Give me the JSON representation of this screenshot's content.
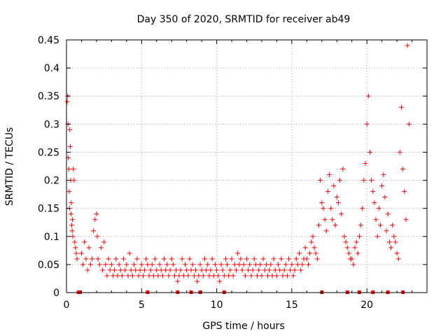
{
  "chart_data": {
    "type": "scatter",
    "title": "Day 350 of 2020, SRMTID for receiver ab49",
    "xlabel": "GPS time / hours",
    "ylabel": "SRMTID / TECUs",
    "xlim": [
      0,
      24
    ],
    "ylim": [
      0,
      0.45
    ],
    "xticks": [
      0,
      5,
      10,
      15,
      20
    ],
    "yticks": [
      0,
      0.05,
      0.1,
      0.15,
      0.2,
      0.25,
      0.3,
      0.35,
      0.4,
      0.45
    ],
    "xtick_labels": [
      "0",
      "5",
      "10",
      "15",
      "20"
    ],
    "ytick_labels": [
      "0",
      "0.05",
      "0.1",
      "0.15",
      "0.2",
      "0.25",
      "0.3",
      "0.35",
      "0.4",
      "0.45"
    ],
    "grid": true,
    "marker": "+",
    "color": "#ff0000",
    "series": [
      {
        "name": "SRMTID",
        "x": [
          0.05,
          0.08,
          0.1,
          0.12,
          0.15,
          0.18,
          0.2,
          0.22,
          0.25,
          0.28,
          0.3,
          0.32,
          0.35,
          0.38,
          0.4,
          0.42,
          0.45,
          0.5,
          0.55,
          0.6,
          0.65,
          0.7,
          1.0,
          1.1,
          1.2,
          1.3,
          1.4,
          1.5,
          1.6,
          1.7,
          1.8,
          1.9,
          2.0,
          2.05,
          2.1,
          2.2,
          2.3,
          2.4,
          2.5,
          2.6,
          2.7,
          2.8,
          2.9,
          3.0,
          3.1,
          3.2,
          3.3,
          3.4,
          3.5,
          3.6,
          3.7,
          3.8,
          3.9,
          4.0,
          4.1,
          4.2,
          4.3,
          4.4,
          4.5,
          4.6,
          4.7,
          4.8,
          4.9,
          5.0,
          5.1,
          5.2,
          5.3,
          5.4,
          5.5,
          5.6,
          5.7,
          5.8,
          5.9,
          6.0,
          6.1,
          6.2,
          6.3,
          6.4,
          6.5,
          6.6,
          6.7,
          6.8,
          6.9,
          7.0,
          7.1,
          7.2,
          7.3,
          7.4,
          7.5,
          7.6,
          7.7,
          7.8,
          7.9,
          8.0,
          8.1,
          8.2,
          8.3,
          8.4,
          8.5,
          8.6,
          8.7,
          8.8,
          8.9,
          9.0,
          9.1,
          9.2,
          9.3,
          9.4,
          9.5,
          9.6,
          9.7,
          9.8,
          9.9,
          10.0,
          10.1,
          10.2,
          10.3,
          10.4,
          10.5,
          10.6,
          10.7,
          10.8,
          10.9,
          11.0,
          11.1,
          11.2,
          11.3,
          11.4,
          11.5,
          11.6,
          11.7,
          11.8,
          11.9,
          12.0,
          12.1,
          12.2,
          12.3,
          12.4,
          12.5,
          12.6,
          12.7,
          12.8,
          12.9,
          13.0,
          13.1,
          13.2,
          13.3,
          13.4,
          13.5,
          13.6,
          13.7,
          13.8,
          13.9,
          14.0,
          14.1,
          14.2,
          14.3,
          14.4,
          14.5,
          14.6,
          14.7,
          14.8,
          14.9,
          15.0,
          15.1,
          15.2,
          15.3,
          15.4,
          15.5,
          15.6,
          15.7,
          15.8,
          15.9,
          16.0,
          16.1,
          16.2,
          16.3,
          16.4,
          16.5,
          16.6,
          16.7,
          16.8,
          16.9,
          17.0,
          17.1,
          17.2,
          17.3,
          17.4,
          17.5,
          17.6,
          17.7,
          17.8,
          17.9,
          18.0,
          18.1,
          18.2,
          18.3,
          18.4,
          18.5,
          18.6,
          18.7,
          18.8,
          18.9,
          19.0,
          19.1,
          19.2,
          19.3,
          19.4,
          19.5,
          19.6,
          19.7,
          19.8,
          19.9,
          20.0,
          20.1,
          20.2,
          20.3,
          20.4,
          20.5,
          20.6,
          20.7,
          20.8,
          20.9,
          21.0,
          21.1,
          21.2,
          21.3,
          21.4,
          21.5,
          21.6,
          21.7,
          21.8,
          21.9,
          22.0,
          22.1,
          22.2,
          22.3,
          22.4,
          22.5,
          22.6,
          22.7,
          22.8
        ],
        "y": [
          0.34,
          0.35,
          0.3,
          0.24,
          0.22,
          0.18,
          0.15,
          0.29,
          0.26,
          0.2,
          0.14,
          0.16,
          0.12,
          0.11,
          0.13,
          0.1,
          0.22,
          0.2,
          0.09,
          0.08,
          0.07,
          0.06,
          0.07,
          0.05,
          0.09,
          0.06,
          0.04,
          0.08,
          0.05,
          0.06,
          0.11,
          0.13,
          0.14,
          0.1,
          0.06,
          0.05,
          0.08,
          0.04,
          0.09,
          0.05,
          0.03,
          0.06,
          0.04,
          0.05,
          0.03,
          0.04,
          0.06,
          0.03,
          0.05,
          0.04,
          0.03,
          0.06,
          0.04,
          0.05,
          0.03,
          0.07,
          0.04,
          0.03,
          0.05,
          0.04,
          0.06,
          0.03,
          0.04,
          0.05,
          0.03,
          0.04,
          0.06,
          0.05,
          0.03,
          0.04,
          0.05,
          0.03,
          0.06,
          0.04,
          0.03,
          0.05,
          0.04,
          0.03,
          0.06,
          0.04,
          0.05,
          0.03,
          0.04,
          0.06,
          0.05,
          0.03,
          0.04,
          0.02,
          0.03,
          0.04,
          0.06,
          0.03,
          0.05,
          0.04,
          0.03,
          0.06,
          0.04,
          0.05,
          0.03,
          0.04,
          0.02,
          0.03,
          0.05,
          0.04,
          0.03,
          0.06,
          0.04,
          0.05,
          0.03,
          0.04,
          0.06,
          0.03,
          0.05,
          0.04,
          0.03,
          0.02,
          0.05,
          0.04,
          0.03,
          0.06,
          0.05,
          0.03,
          0.04,
          0.06,
          0.03,
          0.05,
          0.04,
          0.07,
          0.05,
          0.06,
          0.04,
          0.05,
          0.03,
          0.06,
          0.04,
          0.05,
          0.03,
          0.04,
          0.06,
          0.05,
          0.03,
          0.04,
          0.05,
          0.03,
          0.06,
          0.04,
          0.05,
          0.03,
          0.04,
          0.05,
          0.03,
          0.06,
          0.04,
          0.03,
          0.05,
          0.04,
          0.06,
          0.03,
          0.04,
          0.05,
          0.03,
          0.06,
          0.04,
          0.05,
          0.03,
          0.04,
          0.06,
          0.05,
          0.07,
          0.04,
          0.05,
          0.06,
          0.08,
          0.06,
          0.05,
          0.07,
          0.09,
          0.1,
          0.08,
          0.07,
          0.06,
          0.12,
          0.2,
          0.16,
          0.15,
          0.13,
          0.11,
          0.18,
          0.21,
          0.15,
          0.13,
          0.19,
          0.12,
          0.17,
          0.16,
          0.2,
          0.14,
          0.22,
          0.1,
          0.09,
          0.08,
          0.07,
          0.06,
          0.06,
          0.05,
          0.08,
          0.09,
          0.07,
          0.1,
          0.12,
          0.15,
          0.2,
          0.23,
          0.3,
          0.35,
          0.25,
          0.2,
          0.18,
          0.16,
          0.13,
          0.1,
          0.15,
          0.12,
          0.19,
          0.21,
          0.17,
          0.11,
          0.14,
          0.09,
          0.08,
          0.12,
          0.1,
          0.09,
          0.07,
          0.06,
          0.25,
          0.33,
          0.22,
          0.18,
          0.13,
          0.44,
          0.3
        ]
      }
    ],
    "rug_x": [
      0.8,
      0.9,
      5.4,
      7.4,
      8.3,
      8.9,
      10.5,
      17.0,
      18.7,
      19.5,
      20.4,
      21.4,
      22.4
    ]
  }
}
